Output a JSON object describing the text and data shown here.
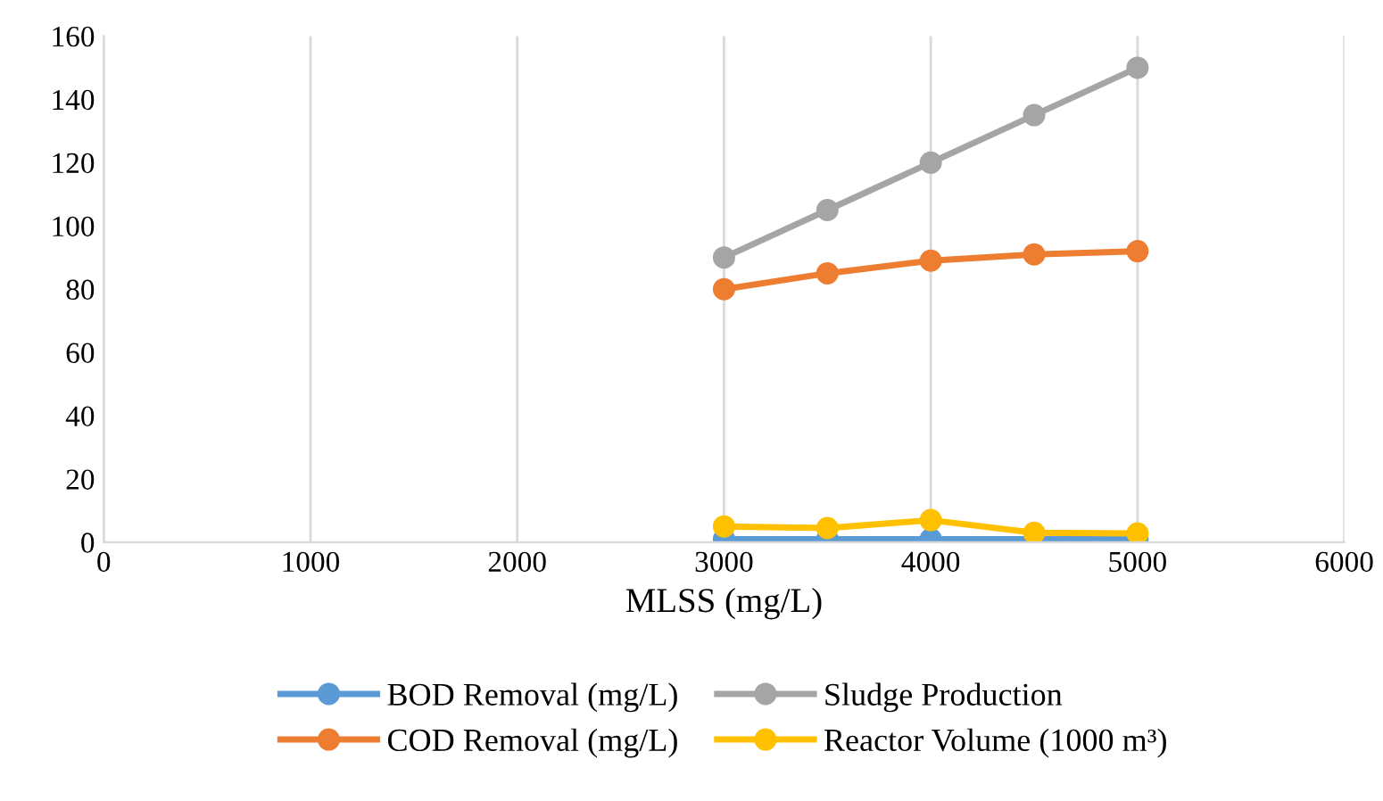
{
  "chart_data": {
    "type": "line",
    "xlabel": "MLSS (mg/L)",
    "x": [
      3000,
      3500,
      4000,
      4500,
      5000
    ],
    "series": [
      {
        "name": "BOD Removal (mg/L)",
        "color": "#5b9bd5",
        "values": [
          1,
          1,
          1,
          1,
          1
        ]
      },
      {
        "name": "COD Removal (mg/L)",
        "color": "#ed7d31",
        "values": [
          80,
          85,
          89,
          91,
          92
        ]
      },
      {
        "name": "Sludge Production",
        "color": "#a5a5a5",
        "values": [
          90,
          105,
          120,
          135,
          150
        ]
      },
      {
        "name": "Reactor Volume (1000 m³)",
        "color": "#ffc000",
        "values": [
          5,
          4.5,
          7,
          3,
          2.8
        ]
      }
    ],
    "xlim": [
      0,
      6000
    ],
    "xticks": [
      0,
      1000,
      2000,
      3000,
      4000,
      5000,
      6000
    ],
    "ylim": [
      0,
      160
    ],
    "yticks": [
      0,
      20,
      40,
      60,
      80,
      100,
      120,
      140,
      160
    ],
    "grid": "x",
    "legend": "bottom",
    "marker": "circle",
    "line_style": "solid"
  }
}
